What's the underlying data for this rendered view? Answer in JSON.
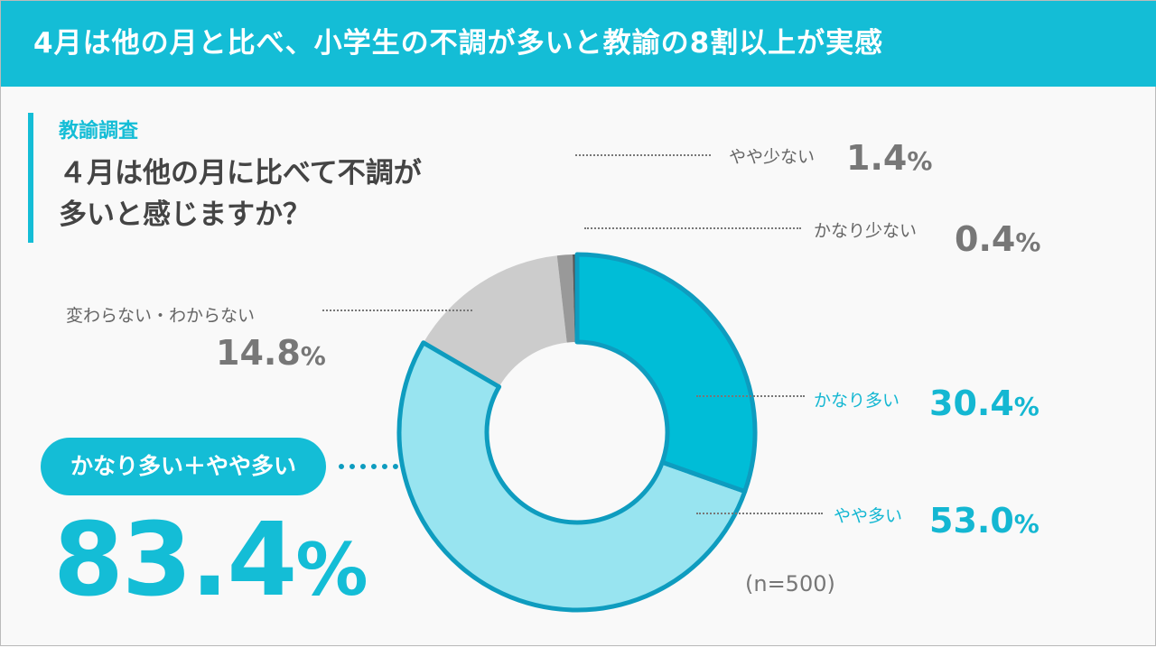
{
  "header": {
    "title": "4月は他の月と比べ、小学生の不調が多いと教諭の8割以上が実感"
  },
  "survey": {
    "label": "教諭調査",
    "question_line1": "４月は他の月に比べて不調が",
    "question_line2": "多いと感じますか？"
  },
  "summary": {
    "label": "かなり多い＋やや多い",
    "value": "83.4",
    "unit": "%"
  },
  "note": "(n=500)",
  "chart_data": {
    "type": "pie",
    "donut": true,
    "start": "12 o'clock, clockwise",
    "slices": [
      {
        "label": "かなり多い",
        "value": 30.4,
        "display": "30.4",
        "color": "#00bdd7"
      },
      {
        "label": "やや多い",
        "value": 53.0,
        "display": "53.0",
        "color": "#98e4f0"
      },
      {
        "label": "変わらない・わからない",
        "value": 14.8,
        "display": "14.8",
        "color": "#cccccc"
      },
      {
        "label": "やや少ない",
        "value": 1.4,
        "display": "1.4",
        "color": "#999999"
      },
      {
        "label": "かなり少ない",
        "value": 0.4,
        "display": "0.4",
        "color": "#555555"
      }
    ],
    "unit": "%",
    "outline_color": "#0e9cbf",
    "sample_size": "n=500"
  }
}
